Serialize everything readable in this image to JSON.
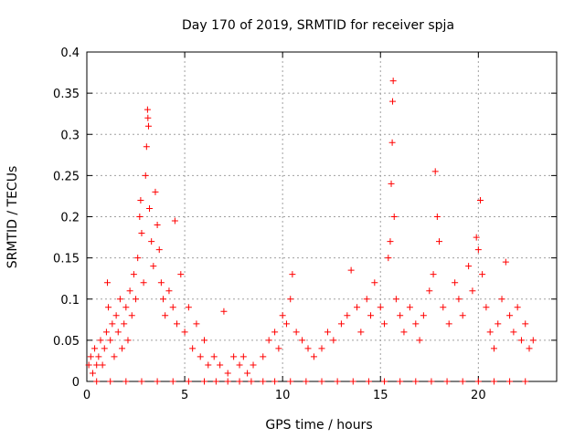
{
  "chart_data": {
    "type": "scatter",
    "title": "Day 170 of 2019, SRMTID for receiver spja",
    "xlabel": "GPS time / hours",
    "ylabel": "SRMTID / TECUs",
    "xlim": [
      0,
      24
    ],
    "ylim": [
      0,
      0.4
    ],
    "x_ticks": [
      0,
      5,
      10,
      15,
      20
    ],
    "x_tick_labels": [
      "0",
      "5",
      "10",
      "15",
      "20"
    ],
    "y_ticks": [
      0,
      0.05,
      0.1,
      0.15,
      0.2,
      0.25,
      0.3,
      0.35,
      0.4
    ],
    "y_tick_labels": [
      "0",
      "0.05",
      "0.1",
      "0.15",
      "0.2",
      "0.25",
      "0.3",
      "0.35",
      "0.4"
    ],
    "grid": true,
    "marker": "+",
    "series": [
      {
        "name": "SRMTID",
        "color": "#ff0000",
        "points": [
          [
            0.1,
            0.02
          ],
          [
            0.2,
            0.03
          ],
          [
            0.3,
            0.01
          ],
          [
            0.4,
            0.04
          ],
          [
            0.5,
            0.02
          ],
          [
            0.6,
            0.03
          ],
          [
            0.7,
            0.05
          ],
          [
            0.8,
            0.02
          ],
          [
            0.9,
            0.04
          ],
          [
            1.0,
            0.06
          ],
          [
            1.05,
            0.12
          ],
          [
            1.1,
            0.09
          ],
          [
            1.2,
            0.05
          ],
          [
            1.3,
            0.07
          ],
          [
            1.4,
            0.03
          ],
          [
            1.5,
            0.08
          ],
          [
            1.6,
            0.06
          ],
          [
            1.7,
            0.1
          ],
          [
            1.8,
            0.04
          ],
          [
            1.9,
            0.07
          ],
          [
            2.0,
            0.09
          ],
          [
            2.1,
            0.05
          ],
          [
            2.2,
            0.11
          ],
          [
            2.3,
            0.08
          ],
          [
            2.4,
            0.13
          ],
          [
            2.5,
            0.1
          ],
          [
            2.6,
            0.15
          ],
          [
            2.7,
            0.2
          ],
          [
            2.75,
            0.22
          ],
          [
            2.8,
            0.18
          ],
          [
            2.9,
            0.12
          ],
          [
            3.0,
            0.25
          ],
          [
            3.05,
            0.285
          ],
          [
            3.1,
            0.33
          ],
          [
            3.12,
            0.32
          ],
          [
            3.15,
            0.31
          ],
          [
            3.2,
            0.21
          ],
          [
            3.3,
            0.17
          ],
          [
            3.4,
            0.14
          ],
          [
            3.5,
            0.23
          ],
          [
            3.6,
            0.19
          ],
          [
            3.7,
            0.16
          ],
          [
            3.8,
            0.12
          ],
          [
            3.9,
            0.1
          ],
          [
            4.0,
            0.08
          ],
          [
            4.2,
            0.11
          ],
          [
            4.4,
            0.09
          ],
          [
            4.5,
            0.195
          ],
          [
            4.6,
            0.07
          ],
          [
            4.8,
            0.13
          ],
          [
            5.0,
            0.06
          ],
          [
            5.2,
            0.09
          ],
          [
            5.4,
            0.04
          ],
          [
            5.6,
            0.07
          ],
          [
            5.8,
            0.03
          ],
          [
            6.0,
            0.05
          ],
          [
            6.2,
            0.02
          ],
          [
            6.5,
            0.03
          ],
          [
            6.8,
            0.02
          ],
          [
            7.0,
            0.085
          ],
          [
            7.2,
            0.01
          ],
          [
            7.5,
            0.03
          ],
          [
            7.8,
            0.02
          ],
          [
            8.0,
            0.03
          ],
          [
            8.2,
            0.01
          ],
          [
            8.5,
            0.02
          ],
          [
            9.0,
            0.03
          ],
          [
            9.3,
            0.05
          ],
          [
            9.6,
            0.06
          ],
          [
            9.8,
            0.04
          ],
          [
            10.0,
            0.08
          ],
          [
            10.2,
            0.07
          ],
          [
            10.4,
            0.1
          ],
          [
            10.5,
            0.13
          ],
          [
            10.7,
            0.06
          ],
          [
            11.0,
            0.05
          ],
          [
            11.3,
            0.04
          ],
          [
            11.6,
            0.03
          ],
          [
            12.0,
            0.04
          ],
          [
            12.3,
            0.06
          ],
          [
            12.6,
            0.05
          ],
          [
            13.0,
            0.07
          ],
          [
            13.3,
            0.08
          ],
          [
            13.5,
            0.135
          ],
          [
            13.8,
            0.09
          ],
          [
            14.0,
            0.06
          ],
          [
            14.3,
            0.1
          ],
          [
            14.5,
            0.08
          ],
          [
            14.7,
            0.12
          ],
          [
            15.0,
            0.09
          ],
          [
            15.2,
            0.07
          ],
          [
            15.4,
            0.15
          ],
          [
            15.5,
            0.17
          ],
          [
            15.55,
            0.24
          ],
          [
            15.6,
            0.29
          ],
          [
            15.62,
            0.34
          ],
          [
            15.65,
            0.365
          ],
          [
            15.7,
            0.2
          ],
          [
            15.8,
            0.1
          ],
          [
            16.0,
            0.08
          ],
          [
            16.2,
            0.06
          ],
          [
            16.5,
            0.09
          ],
          [
            16.8,
            0.07
          ],
          [
            17.0,
            0.05
          ],
          [
            17.2,
            0.08
          ],
          [
            17.5,
            0.11
          ],
          [
            17.7,
            0.13
          ],
          [
            17.8,
            0.255
          ],
          [
            17.9,
            0.2
          ],
          [
            18.0,
            0.17
          ],
          [
            18.2,
            0.09
          ],
          [
            18.5,
            0.07
          ],
          [
            18.8,
            0.12
          ],
          [
            19.0,
            0.1
          ],
          [
            19.2,
            0.08
          ],
          [
            19.5,
            0.14
          ],
          [
            19.7,
            0.11
          ],
          [
            19.9,
            0.175
          ],
          [
            20.0,
            0.16
          ],
          [
            20.1,
            0.22
          ],
          [
            20.2,
            0.13
          ],
          [
            20.4,
            0.09
          ],
          [
            20.6,
            0.06
          ],
          [
            20.8,
            0.04
          ],
          [
            21.0,
            0.07
          ],
          [
            21.2,
            0.1
          ],
          [
            21.4,
            0.145
          ],
          [
            21.6,
            0.08
          ],
          [
            21.8,
            0.06
          ],
          [
            22.0,
            0.09
          ],
          [
            22.2,
            0.05
          ],
          [
            22.4,
            0.07
          ],
          [
            22.6,
            0.04
          ],
          [
            22.8,
            0.05
          ],
          [
            0.5,
            0.0
          ],
          [
            1.2,
            0.0
          ],
          [
            2.0,
            0.0
          ],
          [
            2.8,
            0.0
          ],
          [
            3.6,
            0.0
          ],
          [
            4.4,
            0.0
          ],
          [
            5.2,
            0.0
          ],
          [
            6.0,
            0.0
          ],
          [
            6.6,
            0.0
          ],
          [
            7.2,
            0.0
          ],
          [
            7.8,
            0.0
          ],
          [
            8.4,
            0.0
          ],
          [
            9.0,
            0.0
          ],
          [
            9.6,
            0.0
          ],
          [
            10.4,
            0.0
          ],
          [
            11.2,
            0.0
          ],
          [
            12.0,
            0.0
          ],
          [
            12.8,
            0.0
          ],
          [
            13.6,
            0.0
          ],
          [
            14.4,
            0.0
          ],
          [
            15.2,
            0.0
          ],
          [
            16.0,
            0.0
          ],
          [
            16.8,
            0.0
          ],
          [
            17.6,
            0.0
          ],
          [
            18.4,
            0.0
          ],
          [
            19.2,
            0.0
          ],
          [
            20.0,
            0.0
          ],
          [
            20.8,
            0.0
          ],
          [
            21.6,
            0.0
          ],
          [
            22.4,
            0.0
          ]
        ]
      }
    ]
  }
}
